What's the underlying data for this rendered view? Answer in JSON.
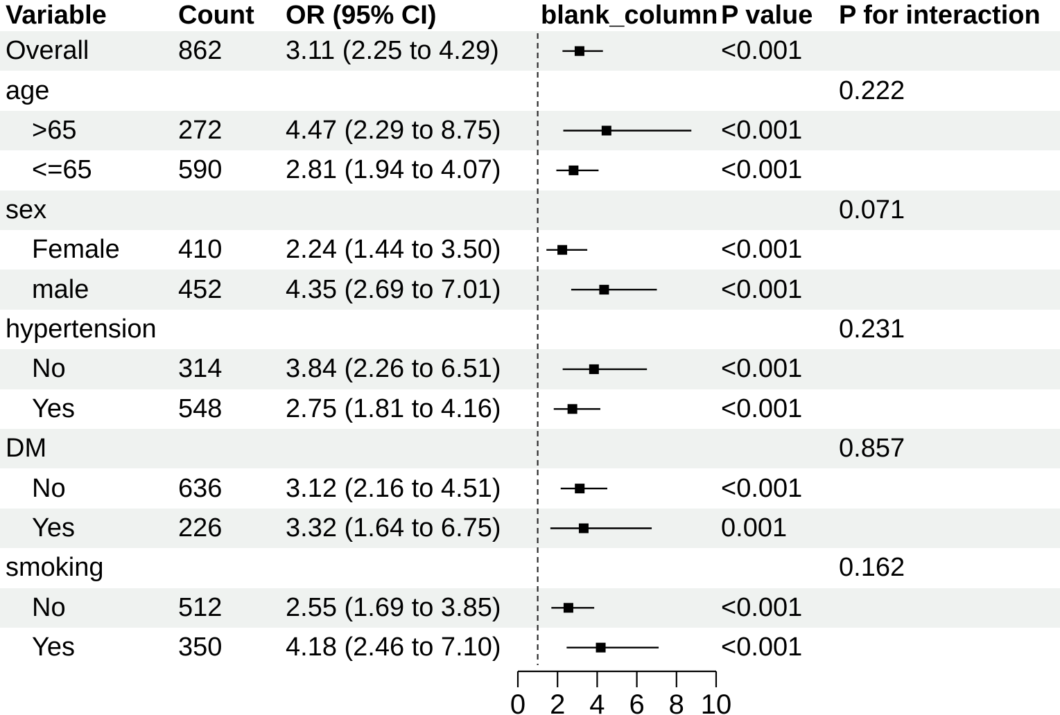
{
  "chart_data": {
    "type": "forest",
    "title": "",
    "columns": {
      "variable": "Variable",
      "count": "Count",
      "or_ci": "OR (95% CI)",
      "blank": "blank_column",
      "p": "P value",
      "p_interaction": "P for interaction"
    },
    "x_axis": {
      "min": 0,
      "max": 10,
      "ticks": [
        0,
        2,
        4,
        6,
        8,
        10
      ],
      "tick_labels": [
        "0",
        "2",
        "4",
        "6",
        "8",
        "10"
      ],
      "reference_line": 1,
      "grid": false
    },
    "rows": [
      {
        "variable": "Overall",
        "indent": false,
        "count": "862",
        "or_ci": "3.11 (2.25 to 4.29)",
        "est": 3.11,
        "lo": 2.25,
        "hi": 4.29,
        "p": "<0.001",
        "p_interaction": ""
      },
      {
        "variable": "age",
        "indent": false,
        "count": "",
        "or_ci": "",
        "est": null,
        "lo": null,
        "hi": null,
        "p": "",
        "p_interaction": "0.222"
      },
      {
        "variable": ">65",
        "indent": true,
        "count": "272",
        "or_ci": "4.47 (2.29 to 8.75)",
        "est": 4.47,
        "lo": 2.29,
        "hi": 8.75,
        "p": "<0.001",
        "p_interaction": ""
      },
      {
        "variable": "<=65",
        "indent": true,
        "count": "590",
        "or_ci": "2.81 (1.94 to 4.07)",
        "est": 2.81,
        "lo": 1.94,
        "hi": 4.07,
        "p": "<0.001",
        "p_interaction": ""
      },
      {
        "variable": "sex",
        "indent": false,
        "count": "",
        "or_ci": "",
        "est": null,
        "lo": null,
        "hi": null,
        "p": "",
        "p_interaction": "0.071"
      },
      {
        "variable": "Female",
        "indent": true,
        "count": "410",
        "or_ci": "2.24 (1.44 to 3.50)",
        "est": 2.24,
        "lo": 1.44,
        "hi": 3.5,
        "p": "<0.001",
        "p_interaction": ""
      },
      {
        "variable": "male",
        "indent": true,
        "count": "452",
        "or_ci": "4.35 (2.69 to 7.01)",
        "est": 4.35,
        "lo": 2.69,
        "hi": 7.01,
        "p": "<0.001",
        "p_interaction": ""
      },
      {
        "variable": "hypertension",
        "indent": false,
        "count": "",
        "or_ci": "",
        "est": null,
        "lo": null,
        "hi": null,
        "p": "",
        "p_interaction": "0.231"
      },
      {
        "variable": "No",
        "indent": true,
        "count": "314",
        "or_ci": "3.84 (2.26 to 6.51)",
        "est": 3.84,
        "lo": 2.26,
        "hi": 6.51,
        "p": "<0.001",
        "p_interaction": ""
      },
      {
        "variable": "Yes",
        "indent": true,
        "count": "548",
        "or_ci": "2.75 (1.81 to 4.16)",
        "est": 2.75,
        "lo": 1.81,
        "hi": 4.16,
        "p": "<0.001",
        "p_interaction": ""
      },
      {
        "variable": "DM",
        "indent": false,
        "count": "",
        "or_ci": "",
        "est": null,
        "lo": null,
        "hi": null,
        "p": "",
        "p_interaction": "0.857"
      },
      {
        "variable": "No",
        "indent": true,
        "count": "636",
        "or_ci": "3.12 (2.16 to 4.51)",
        "est": 3.12,
        "lo": 2.16,
        "hi": 4.51,
        "p": "<0.001",
        "p_interaction": ""
      },
      {
        "variable": "Yes",
        "indent": true,
        "count": "226",
        "or_ci": "3.32 (1.64 to 6.75)",
        "est": 3.32,
        "lo": 1.64,
        "hi": 6.75,
        "p": "0.001",
        "p_interaction": ""
      },
      {
        "variable": "smoking",
        "indent": false,
        "count": "",
        "or_ci": "",
        "est": null,
        "lo": null,
        "hi": null,
        "p": "",
        "p_interaction": "0.162"
      },
      {
        "variable": "No",
        "indent": true,
        "count": "512",
        "or_ci": "2.55 (1.69 to 3.85)",
        "est": 2.55,
        "lo": 1.69,
        "hi": 3.85,
        "p": "<0.001",
        "p_interaction": ""
      },
      {
        "variable": "Yes",
        "indent": true,
        "count": "350",
        "or_ci": "4.18 (2.46 to 7.10)",
        "est": 4.18,
        "lo": 2.46,
        "hi": 7.1,
        "p": "<0.001",
        "p_interaction": ""
      }
    ],
    "colors": {
      "stripe": "#EFF2F0",
      "background": "#FFFFFF",
      "text": "#000000",
      "marker": "#000000",
      "line": "#000000",
      "reference_line": "#2B2B2B"
    },
    "marker_shape": "square",
    "legend": null
  }
}
